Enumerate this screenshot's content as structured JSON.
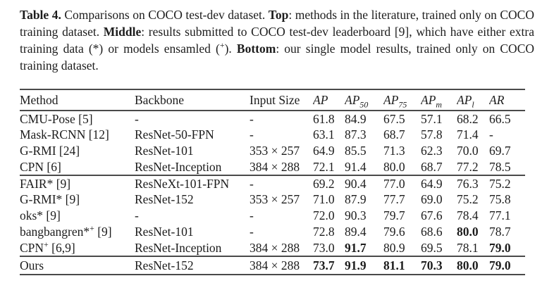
{
  "caption": {
    "segments": [
      {
        "text": "Table 4.",
        "bold": true
      },
      {
        "text": " Comparisons on COCO test-dev dataset. ",
        "bold": false
      },
      {
        "text": "Top",
        "bold": true
      },
      {
        "text": ": methods in the literature, trained only on COCO training dataset. ",
        "bold": false
      },
      {
        "text": "Middle",
        "bold": true
      },
      {
        "text": ": results submitted to COCO test-dev leaderboard [9], which have either extra training data (*) or models ensamled (",
        "bold": false
      },
      {
        "text": "+",
        "bold": false,
        "sup": true
      },
      {
        "text": "). ",
        "bold": false
      },
      {
        "text": "Bottom",
        "bold": true
      },
      {
        "text": ": our single model results, trained only on COCO training dataset.",
        "bold": false
      }
    ]
  },
  "table": {
    "headers": [
      {
        "label": "Method",
        "italic": false
      },
      {
        "label": "Backbone",
        "italic": false
      },
      {
        "label": "Input Size",
        "italic": false
      },
      {
        "label": "AP",
        "italic": true
      },
      {
        "label": "AP",
        "sub": "50",
        "italic": true
      },
      {
        "label": "AP",
        "sub": "75",
        "italic": true
      },
      {
        "label": "AP",
        "sub": "m",
        "italic": true
      },
      {
        "label": "AP",
        "sub": "l",
        "italic": true
      },
      {
        "label": "AR",
        "italic": true
      }
    ],
    "sections": [
      {
        "name": "literature",
        "rows": [
          {
            "method": {
              "text": "CMU-Pose [5]"
            },
            "backbone": "-",
            "input_size": "-",
            "metrics": [
              {
                "v": "61.8"
              },
              {
                "v": "84.9"
              },
              {
                "v": "67.5"
              },
              {
                "v": "57.1"
              },
              {
                "v": "68.2"
              },
              {
                "v": "66.5"
              }
            ]
          },
          {
            "method": {
              "text": "Mask-RCNN [12]"
            },
            "backbone": "ResNet-50-FPN",
            "input_size": "-",
            "metrics": [
              {
                "v": "63.1"
              },
              {
                "v": "87.3"
              },
              {
                "v": "68.7"
              },
              {
                "v": "57.8"
              },
              {
                "v": "71.4"
              },
              {
                "v": "-"
              }
            ]
          },
          {
            "method": {
              "text": "G-RMI [24]"
            },
            "backbone": "ResNet-101",
            "input_size": "353 × 257",
            "metrics": [
              {
                "v": "64.9"
              },
              {
                "v": "85.5"
              },
              {
                "v": "71.3"
              },
              {
                "v": "62.3"
              },
              {
                "v": "70.0"
              },
              {
                "v": "69.7"
              }
            ]
          },
          {
            "method": {
              "text": "CPN [6]"
            },
            "backbone": "ResNet-Inception",
            "input_size": "384 × 288",
            "metrics": [
              {
                "v": "72.1"
              },
              {
                "v": "91.4"
              },
              {
                "v": "80.0"
              },
              {
                "v": "68.7"
              },
              {
                "v": "77.2"
              },
              {
                "v": "78.5"
              }
            ]
          }
        ]
      },
      {
        "name": "leaderboard",
        "rows": [
          {
            "method": {
              "text": "FAIR* [9]"
            },
            "backbone": "ResNeXt-101-FPN",
            "input_size": "-",
            "metrics": [
              {
                "v": "69.2"
              },
              {
                "v": "90.4"
              },
              {
                "v": "77.0"
              },
              {
                "v": "64.9"
              },
              {
                "v": "76.3"
              },
              {
                "v": "75.2"
              }
            ]
          },
          {
            "method": {
              "text": "G-RMI* [9]"
            },
            "backbone": "ResNet-152",
            "input_size": "353 × 257",
            "metrics": [
              {
                "v": "71.0"
              },
              {
                "v": "87.9"
              },
              {
                "v": "77.7"
              },
              {
                "v": "69.0"
              },
              {
                "v": "75.2"
              },
              {
                "v": "75.8"
              }
            ]
          },
          {
            "method": {
              "text": "oks* [9]"
            },
            "backbone": "-",
            "input_size": "-",
            "metrics": [
              {
                "v": "72.0"
              },
              {
                "v": "90.3"
              },
              {
                "v": "79.7"
              },
              {
                "v": "67.6"
              },
              {
                "v": "78.4"
              },
              {
                "v": "77.1"
              }
            ]
          },
          {
            "method": {
              "text": "bangbangren*",
              "sup": "+",
              "rest": " [9]"
            },
            "backbone": "ResNet-101",
            "input_size": "-",
            "metrics": [
              {
                "v": "72.8"
              },
              {
                "v": "89.4"
              },
              {
                "v": "79.6"
              },
              {
                "v": "68.6"
              },
              {
                "v": "80.0",
                "bold": true
              },
              {
                "v": "78.7"
              }
            ]
          },
          {
            "method": {
              "text": "CPN",
              "sup": "+",
              "rest": " [6,9]"
            },
            "backbone": "ResNet-Inception",
            "input_size": "384 × 288",
            "metrics": [
              {
                "v": "73.0"
              },
              {
                "v": "91.7",
                "bold": true
              },
              {
                "v": "80.9"
              },
              {
                "v": "69.5"
              },
              {
                "v": "78.1"
              },
              {
                "v": "79.0",
                "bold": true
              }
            ]
          }
        ]
      },
      {
        "name": "ours",
        "rows": [
          {
            "method": {
              "text": "Ours"
            },
            "backbone": "ResNet-152",
            "input_size": "384 × 288",
            "metrics": [
              {
                "v": "73.7",
                "bold": true
              },
              {
                "v": "91.9",
                "bold": true
              },
              {
                "v": "81.1",
                "bold": true
              },
              {
                "v": "70.3",
                "bold": true
              },
              {
                "v": "80.0",
                "bold": true
              },
              {
                "v": "79.0",
                "bold": true
              }
            ]
          }
        ]
      }
    ]
  }
}
